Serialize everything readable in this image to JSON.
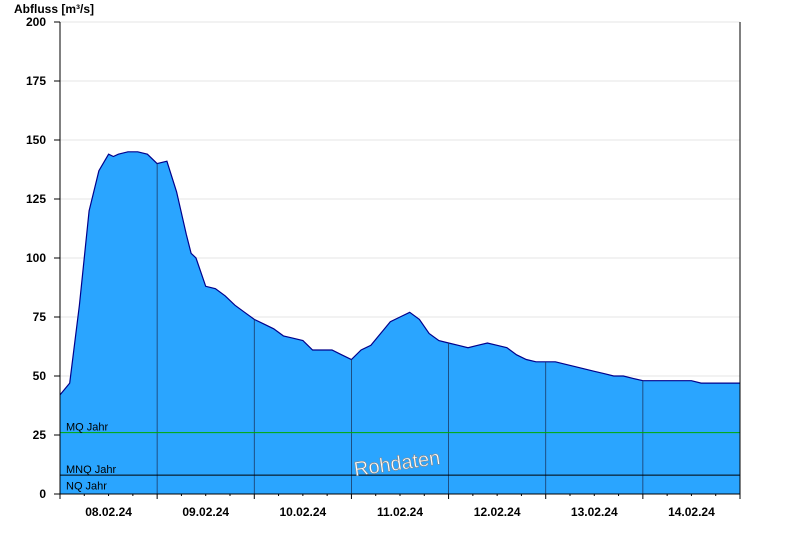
{
  "chart_data": {
    "type": "area",
    "ylabel": "Abfluss [m³/s]",
    "ylim": [
      0,
      200
    ],
    "yticks": [
      0,
      25,
      50,
      75,
      100,
      125,
      150,
      175,
      200
    ],
    "xlim": [
      0,
      7
    ],
    "xtick_labels": [
      "08.02.24",
      "09.02.24",
      "10.02.24",
      "11.02.24",
      "12.02.24",
      "13.02.24",
      "14.02.24"
    ],
    "grid": true,
    "colors": {
      "fill": "#2aa5ff",
      "outline": "#00008b",
      "mq_line": "#00aa00",
      "mnq_line": "#000000"
    },
    "series": [
      {
        "x": [
          0,
          0.1,
          0.2,
          0.3,
          0.4,
          0.5,
          0.55,
          0.6,
          0.7,
          0.8,
          0.9,
          1.0,
          1.1,
          1.2,
          1.3,
          1.35,
          1.4,
          1.5,
          1.6,
          1.7,
          1.8,
          1.9,
          2.0,
          2.1,
          2.2,
          2.3,
          2.4,
          2.5,
          2.6,
          2.7,
          2.8,
          2.9,
          3.0,
          3.1,
          3.2,
          3.3,
          3.4,
          3.5,
          3.6,
          3.7,
          3.8,
          3.9,
          4.0,
          4.1,
          4.2,
          4.3,
          4.4,
          4.5,
          4.6,
          4.7,
          4.8,
          4.9,
          5.0,
          5.1,
          5.2,
          5.3,
          5.4,
          5.5,
          5.6,
          5.7,
          5.8,
          5.9,
          6.0,
          6.1,
          6.2,
          6.3,
          6.4,
          6.5,
          6.6,
          6.7,
          6.8,
          6.9,
          7.0
        ],
        "values": [
          42,
          47,
          80,
          120,
          137,
          144,
          143,
          144,
          145,
          145,
          144,
          140,
          141,
          128,
          110,
          102,
          100,
          88,
          87,
          84,
          80,
          77,
          74,
          72,
          70,
          67,
          66,
          65,
          61,
          61,
          61,
          59,
          57,
          61,
          63,
          68,
          73,
          75,
          77,
          74,
          68,
          65,
          64,
          63,
          62,
          63,
          64,
          63,
          62,
          59,
          57,
          56,
          56,
          56,
          55,
          54,
          53,
          52,
          51,
          50,
          50,
          49,
          48,
          48,
          48,
          48,
          48,
          48,
          47,
          47,
          47,
          47,
          47
        ]
      }
    ],
    "reference_lines": [
      {
        "label": "MQ Jahr",
        "value": 26
      },
      {
        "label": "MNQ Jahr",
        "value": 8
      },
      {
        "label": "NQ Jahr",
        "value": 1
      }
    ],
    "watermark": "Rohdaten"
  }
}
